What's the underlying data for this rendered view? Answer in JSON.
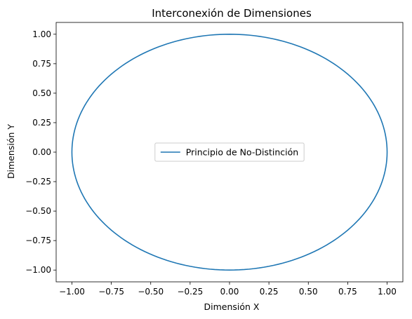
{
  "chart_data": {
    "type": "line",
    "title": "Interconexión de Dimensiones",
    "xlabel": "Dimensión X",
    "ylabel": "Dimensión Y",
    "xlim": [
      -1.1,
      1.1
    ],
    "ylim": [
      -1.1,
      1.1
    ],
    "x_ticks": [
      -1.0,
      -0.75,
      -0.5,
      -0.25,
      0.0,
      0.25,
      0.5,
      0.75,
      1.0
    ],
    "y_ticks": [
      -1.0,
      -0.75,
      -0.5,
      -0.25,
      0.0,
      0.25,
      0.5,
      0.75,
      1.0
    ],
    "x_tick_labels": [
      "−1.00",
      "−0.75",
      "−0.50",
      "−0.25",
      "0.00",
      "0.25",
      "0.50",
      "0.75",
      "1.00"
    ],
    "y_tick_labels": [
      "−1.00",
      "−0.75",
      "−0.50",
      "−0.25",
      "0.00",
      "0.25",
      "0.50",
      "0.75",
      "1.00"
    ],
    "grid": false,
    "legend_position": "center",
    "series": [
      {
        "name": "Principio de No-Distinción",
        "color": "#1f77b4",
        "shape": "circle",
        "center": [
          0,
          0
        ],
        "radius": 1.0,
        "equation": "x = cos(t), y = sin(t), t ∈ [0, 2π]"
      }
    ]
  }
}
